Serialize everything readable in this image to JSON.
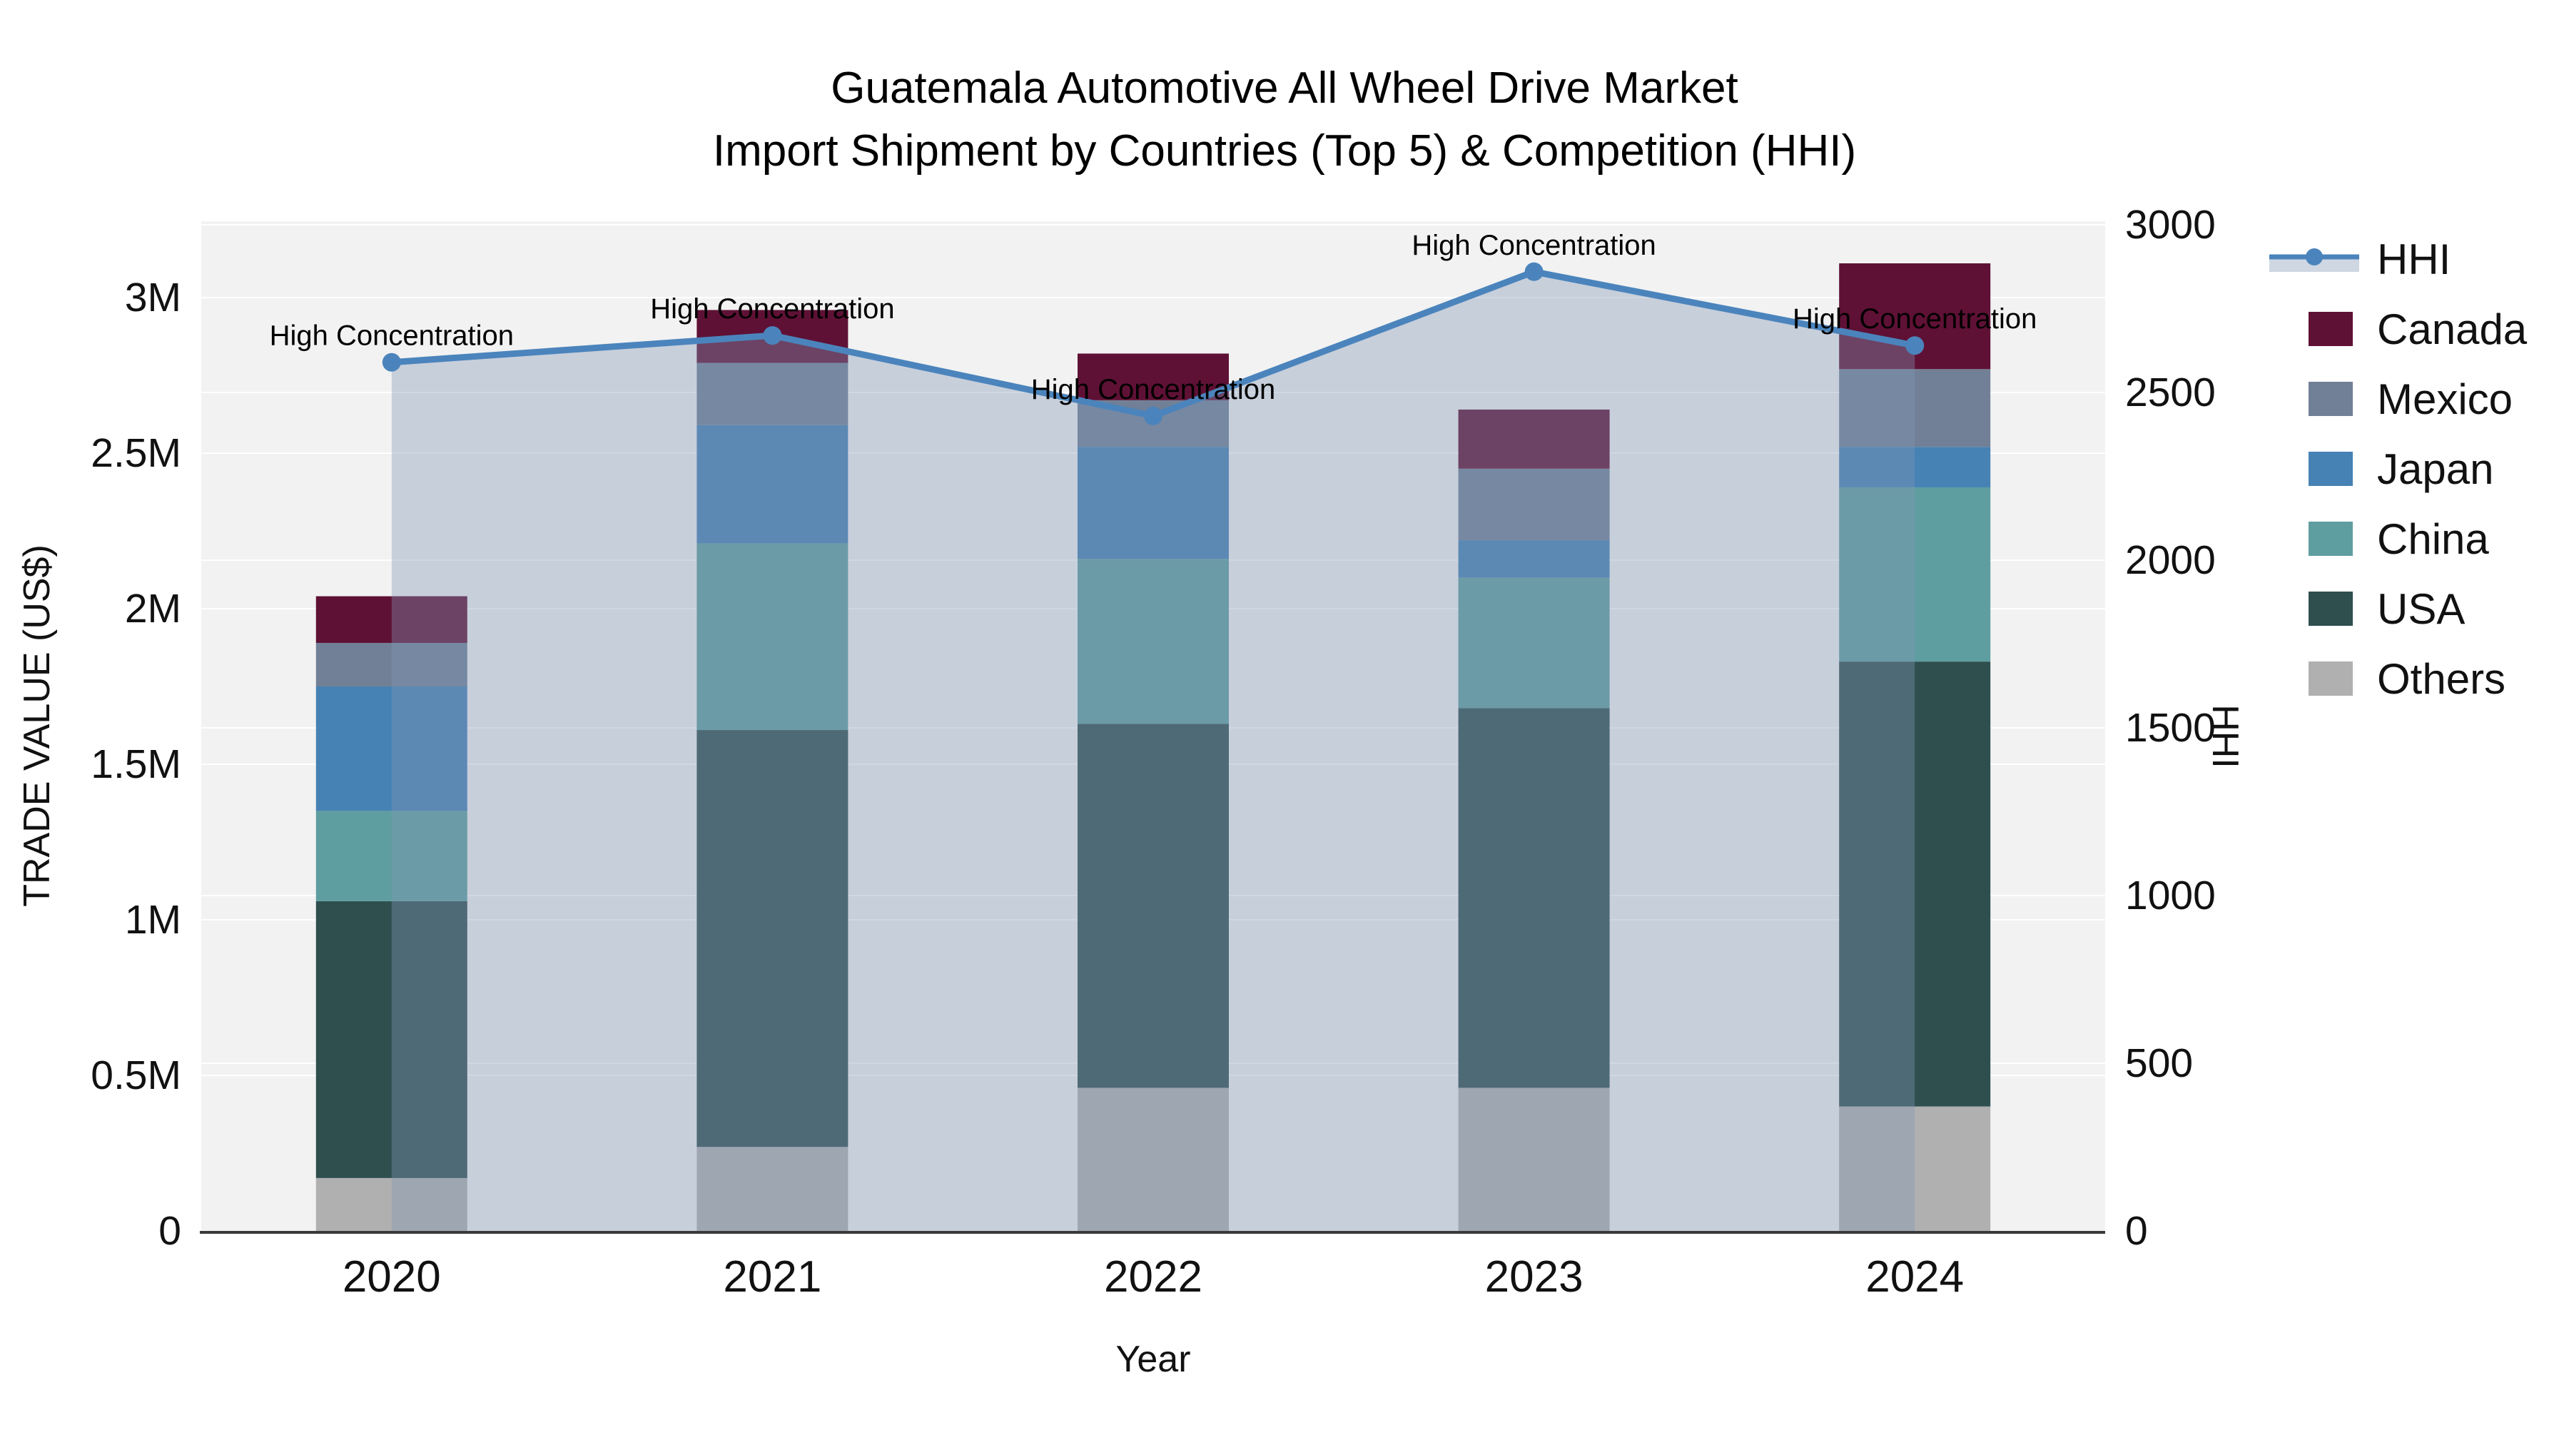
{
  "title": {
    "line1": "Guatemala Automotive All Wheel Drive Market",
    "line2": "Import Shipment by Countries (Top 5) & Competition (HHI)"
  },
  "chart_data": {
    "type": "bar",
    "subtype": "stacked-bar-with-line-overlay",
    "categories": [
      "2020",
      "2021",
      "2022",
      "2023",
      "2024"
    ],
    "bar_unit": "millions US$",
    "bar_stack_order": "bottom to top",
    "series": [
      {
        "name": "Others",
        "color": "#b0b0b0",
        "values": [
          0.17,
          0.27,
          0.46,
          0.46,
          0.4
        ]
      },
      {
        "name": "USA",
        "color": "#2f4f4f",
        "values": [
          0.89,
          1.34,
          1.17,
          1.22,
          1.43
        ]
      },
      {
        "name": "China",
        "color": "#5f9ea0",
        "values": [
          0.29,
          0.6,
          0.53,
          0.42,
          0.56
        ]
      },
      {
        "name": "Japan",
        "color": "#4682b4",
        "values": [
          0.4,
          0.38,
          0.36,
          0.12,
          0.13
        ]
      },
      {
        "name": "Mexico",
        "color": "#718096",
        "values": [
          0.14,
          0.2,
          0.15,
          0.23,
          0.25
        ]
      },
      {
        "name": "Canada",
        "color": "#5f1135",
        "values": [
          0.15,
          0.17,
          0.15,
          0.19,
          0.34
        ]
      }
    ],
    "bar_totals": [
      2.04,
      2.96,
      2.82,
      2.64,
      3.11
    ],
    "line_series": {
      "name": "HHI",
      "color": "#4b84bc",
      "area_fill": "rgba(130,150,182,0.38)",
      "values": [
        2590,
        2670,
        2430,
        2860,
        2640
      ]
    },
    "annotations": [
      {
        "text": "High Concentration",
        "category": "2020"
      },
      {
        "text": "High Concentration",
        "category": "2021"
      },
      {
        "text": "High Concentration",
        "category": "2022"
      },
      {
        "text": "High Concentration",
        "category": "2023"
      },
      {
        "text": "High Concentration",
        "category": "2024"
      }
    ],
    "axes": {
      "x": {
        "label": "Year",
        "ticks": [
          "2020",
          "2021",
          "2022",
          "2023",
          "2024"
        ]
      },
      "y_left": {
        "label": "TRADE VALUE (US$)",
        "ticks": [
          "0",
          "0.5M",
          "1M",
          "1.5M",
          "2M",
          "2.5M",
          "3M"
        ],
        "tick_values": [
          0,
          0.5,
          1,
          1.5,
          2,
          2.5,
          3
        ],
        "range": [
          0,
          3.24
        ]
      },
      "y_right": {
        "label": "HHI",
        "ticks": [
          "0",
          "500",
          "1000",
          "1500",
          "2000",
          "2500",
          "3000"
        ],
        "tick_values": [
          0,
          500,
          1000,
          1500,
          2000,
          2500,
          3000
        ],
        "range": [
          0,
          3000
        ]
      },
      "grid": "horizontal white gridlines on light gray plot background"
    },
    "legend": {
      "position": "right",
      "items": [
        {
          "label": "HHI",
          "type": "line",
          "color": "#4b84bc"
        },
        {
          "label": "Canada",
          "type": "swatch",
          "color": "#5f1135"
        },
        {
          "label": "Mexico",
          "type": "swatch",
          "color": "#718096"
        },
        {
          "label": "Japan",
          "type": "swatch",
          "color": "#4682b4"
        },
        {
          "label": "China",
          "type": "swatch",
          "color": "#5f9ea0"
        },
        {
          "label": "USA",
          "type": "swatch",
          "color": "#2f4f4f"
        },
        {
          "label": "Others",
          "type": "swatch",
          "color": "#b0b0b0"
        }
      ]
    },
    "colors": {
      "figure_bg": "#ffffff",
      "plot_bg": "#f2f2f2",
      "gridline": "#ffffff",
      "axis_line": "#3a3a3a",
      "text": "#111111"
    }
  }
}
